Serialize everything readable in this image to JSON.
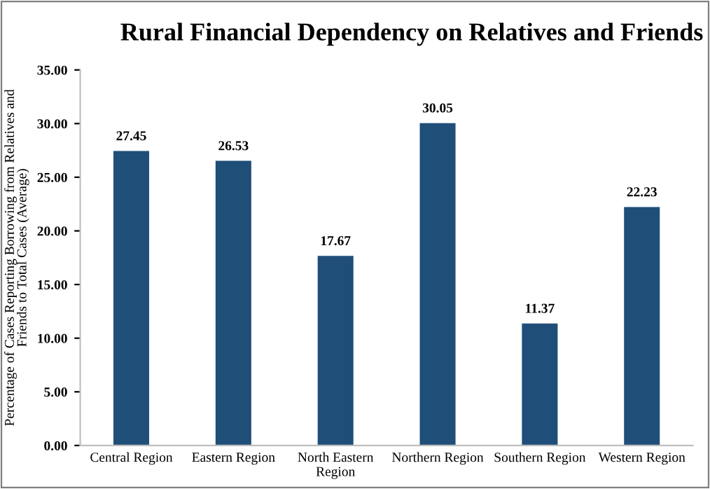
{
  "chart_data": {
    "type": "bar",
    "title": "Rural Financial Dependency on Relatives and Friends",
    "ylabel": "Percentage of Cases Reporting Borrowing from Relatives and\nFriends to Total Cases (Average)",
    "categories": [
      "Central Region",
      "Eastern Region",
      "North Eastern\nRegion",
      "Northern Region",
      "Southern Region",
      "Western Region"
    ],
    "values": [
      27.45,
      26.53,
      17.67,
      30.05,
      11.37,
      22.23
    ],
    "color": "#1f4e79",
    "ylim": [
      0,
      35
    ],
    "yticks": [
      {
        "value": 0,
        "label": "0.00"
      },
      {
        "value": 5,
        "label": "5.00"
      },
      {
        "value": 10,
        "label": "10.00"
      },
      {
        "value": 15,
        "label": "15.00"
      },
      {
        "value": 20,
        "label": "20.00"
      },
      {
        "value": 25,
        "label": "25.00"
      },
      {
        "value": 30,
        "label": "30.00"
      },
      {
        "value": 35,
        "label": "35.00"
      }
    ],
    "data_labels": true,
    "grid": false,
    "legend": false
  }
}
